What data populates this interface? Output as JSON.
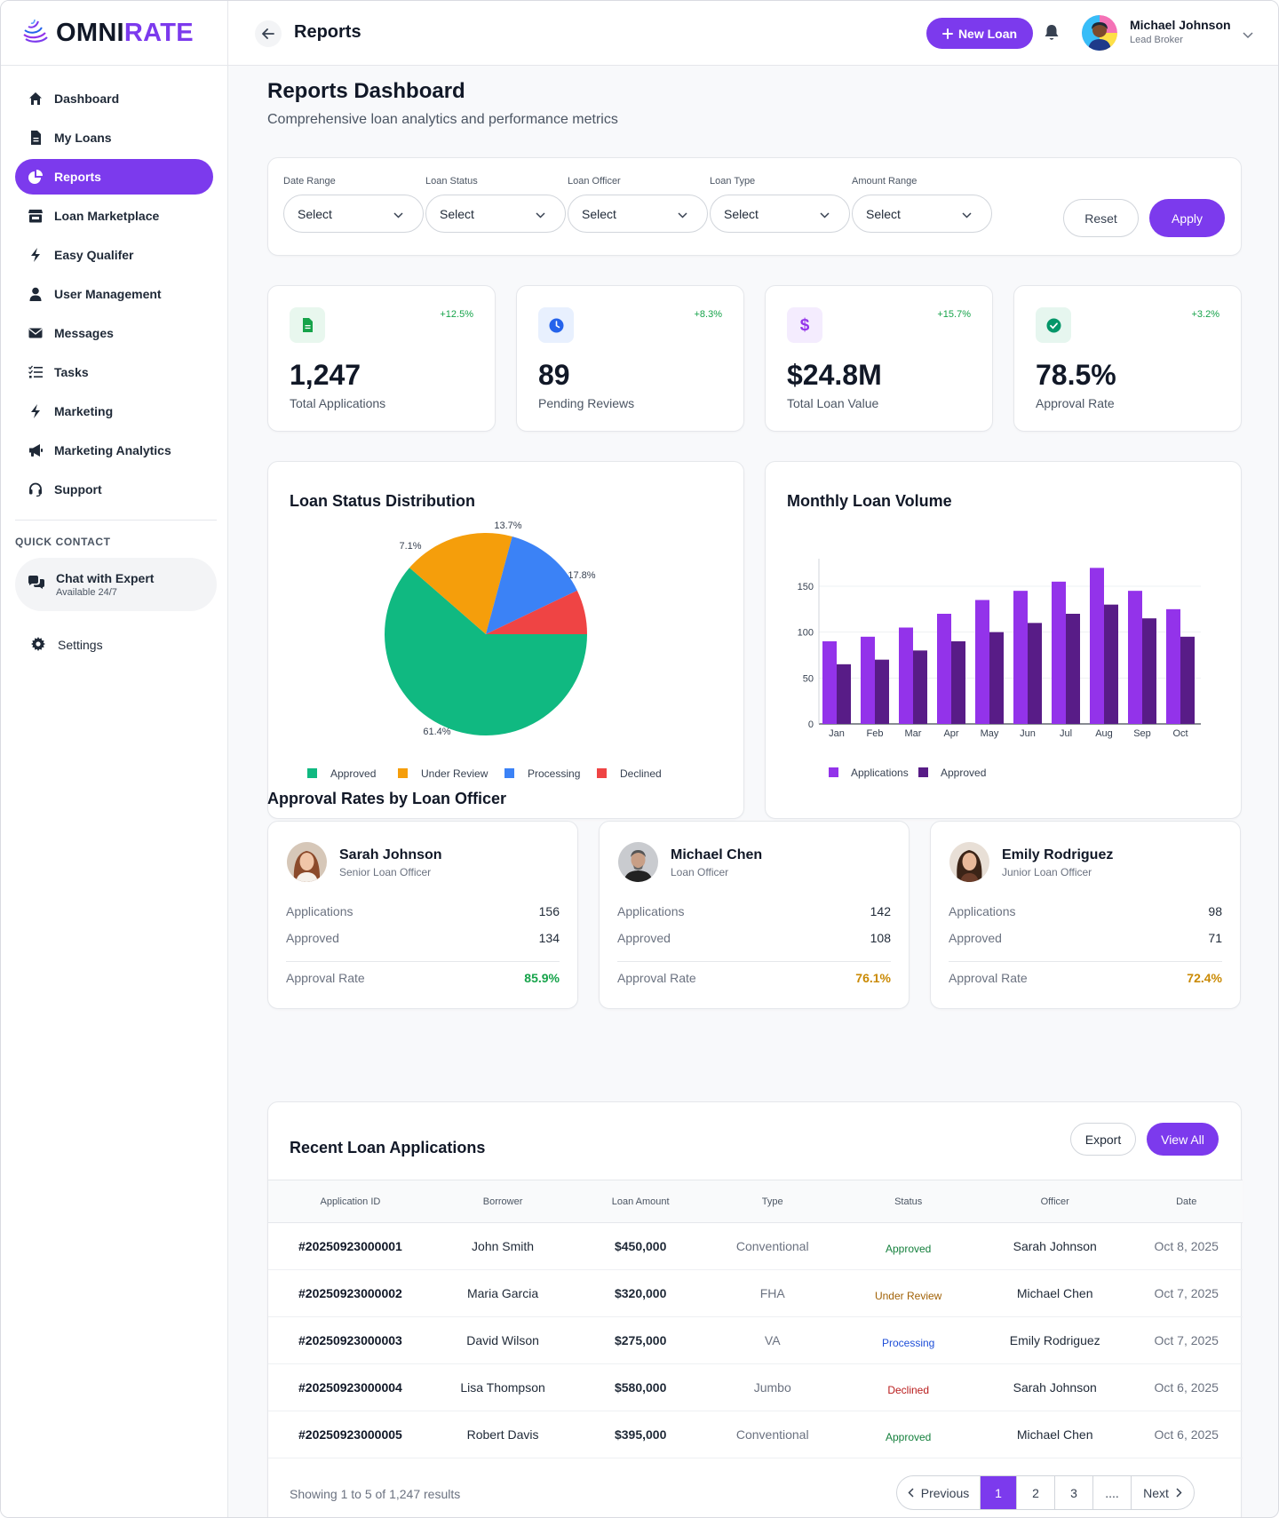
{
  "brand": {
    "part1": "OMNI",
    "part2": "RATE"
  },
  "header": {
    "title": "Reports",
    "new_loan": "New Loan",
    "user_name": "Michael Johnson",
    "user_role": "Lead Broker"
  },
  "sidebar": {
    "items": [
      {
        "label": "Dashboard",
        "icon": "home-icon"
      },
      {
        "label": "My Loans",
        "icon": "file-icon"
      },
      {
        "label": "Reports",
        "icon": "pie-icon"
      },
      {
        "label": "Loan Marketplace",
        "icon": "store-icon"
      },
      {
        "label": "Easy Qualifer",
        "icon": "bolt-icon"
      },
      {
        "label": "User Management",
        "icon": "user-icon"
      },
      {
        "label": "Messages",
        "icon": "mail-icon"
      },
      {
        "label": "Tasks",
        "icon": "list-check-icon"
      },
      {
        "label": "Marketing",
        "icon": "bolt-icon"
      },
      {
        "label": "Marketing Analytics",
        "icon": "megaphone-icon"
      },
      {
        "label": "Support",
        "icon": "headset-icon"
      }
    ],
    "quick_contact_title": "QUICK CONTACT",
    "chat_title": "Chat with Expert",
    "chat_sub": "Available 24/7",
    "settings": "Settings"
  },
  "page": {
    "title": "Reports Dashboard",
    "subtitle": "Comprehensive loan analytics and performance metrics"
  },
  "filters": {
    "fields": [
      {
        "label": "Date Range",
        "value": "Select"
      },
      {
        "label": "Loan Status",
        "value": "Select"
      },
      {
        "label": "Loan Officer",
        "value": "Select"
      },
      {
        "label": "Loan Type",
        "value": "Select"
      },
      {
        "label": "Amount Range",
        "value": "Select"
      }
    ],
    "reset": "Reset",
    "apply": "Apply"
  },
  "stats": [
    {
      "value": "1,247",
      "label": "Total Applications",
      "change": "+12.5%",
      "icon": "file-icon",
      "color": "#16a34a",
      "bg": "#e8f7ee"
    },
    {
      "value": "89",
      "label": "Pending Reviews",
      "change": "+8.3%",
      "icon": "clock-icon",
      "color": "#2563eb",
      "bg": "#e8f0fe"
    },
    {
      "value": "$24.8M",
      "label": "Total Loan Value",
      "change": "+15.7%",
      "icon": "dollar-icon",
      "color": "#9333ea",
      "bg": "#f4ecfe"
    },
    {
      "value": "78.5%",
      "label": "Approval Rate",
      "change": "+3.2%",
      "icon": "check-circle-icon",
      "color": "#059669",
      "bg": "#e6f6ef"
    }
  ],
  "chart_data": [
    {
      "type": "pie",
      "title": "Loan Status Distribution",
      "labels": [
        "Approved",
        "Under Review",
        "Processing",
        "Declined"
      ],
      "values": [
        61.4,
        17.8,
        13.7,
        7.1
      ],
      "value_labels": [
        "61.4%",
        "17.8%",
        "13.7%",
        "7.1%"
      ],
      "colors": [
        "#10b981",
        "#f59e0b",
        "#3b82f6",
        "#ef4444"
      ],
      "legend_position": "bottom"
    },
    {
      "type": "bar",
      "title": "Monthly Loan Volume",
      "categories": [
        "Jan",
        "Feb",
        "Mar",
        "Apr",
        "May",
        "Jun",
        "Jul",
        "Aug",
        "Sep",
        "Oct"
      ],
      "series": [
        {
          "name": "Applications",
          "values": [
            90,
            95,
            105,
            120,
            135,
            145,
            155,
            170,
            145,
            125
          ],
          "color": "#9333ea"
        },
        {
          "name": "Approved",
          "values": [
            65,
            70,
            80,
            90,
            100,
            110,
            120,
            130,
            115,
            95
          ],
          "color": "#581c87"
        }
      ],
      "yticks": [
        0,
        50,
        100,
        150
      ],
      "ylim": [
        0,
        175
      ],
      "grid": true,
      "legend_position": "bottom"
    }
  ],
  "officers_title": "Approval Rates by Loan Officer",
  "officers": [
    {
      "name": "Sarah Johnson",
      "role": "Senior Loan Officer",
      "applications": "156",
      "approved": "134",
      "rate": "85.9%",
      "rate_color": "#16a34a"
    },
    {
      "name": "Michael Chen",
      "role": "Loan Officer",
      "applications": "142",
      "approved": "108",
      "rate": "76.1%",
      "rate_color": "#ca8a04"
    },
    {
      "name": "Emily Rodriguez",
      "role": "Junior Loan Officer",
      "applications": "98",
      "approved": "71",
      "rate": "72.4%",
      "rate_color": "#ca8a04"
    }
  ],
  "officer_labels": {
    "applications": "Applications",
    "approved": "Approved",
    "rate": "Approval Rate"
  },
  "recent": {
    "title": "Recent Loan Applications",
    "export": "Export",
    "view_all": "View All",
    "columns": [
      "Application ID",
      "Borrower",
      "Loan Amount",
      "Type",
      "Status",
      "Officer",
      "Date"
    ],
    "rows": [
      {
        "id": "#20250923000001",
        "borrower": "John Smith",
        "amount": "$450,000",
        "type": "Conventional",
        "status": "Approved",
        "status_color": "#15803d",
        "officer": "Sarah Johnson",
        "date": "Oct 8, 2025"
      },
      {
        "id": "#20250923000002",
        "borrower": "Maria Garcia",
        "amount": "$320,000",
        "type": "FHA",
        "status": "Under Review",
        "status_color": "#a16207",
        "officer": "Michael Chen",
        "date": "Oct 7, 2025"
      },
      {
        "id": "#20250923000003",
        "borrower": "David Wilson",
        "amount": "$275,000",
        "type": "VA",
        "status": "Processing",
        "status_color": "#1d4ed8",
        "officer": "Emily Rodriguez",
        "date": "Oct 7, 2025"
      },
      {
        "id": "#20250923000004",
        "borrower": "Lisa Thompson",
        "amount": "$580,000",
        "type": "Jumbo",
        "status": "Declined",
        "status_color": "#b91c1c",
        "officer": "Sarah Johnson",
        "date": "Oct 6, 2025"
      },
      {
        "id": "#20250923000005",
        "borrower": "Robert Davis",
        "amount": "$395,000",
        "type": "Conventional",
        "status": "Approved",
        "status_color": "#15803d",
        "officer": "Michael Chen",
        "date": "Oct 6, 2025"
      }
    ],
    "showing": "Showing 1 to 5 of 1,247 results",
    "pagination": {
      "previous": "Previous",
      "pages": [
        "1",
        "2",
        "3",
        "...."
      ],
      "current": "1",
      "next": "Next"
    }
  }
}
